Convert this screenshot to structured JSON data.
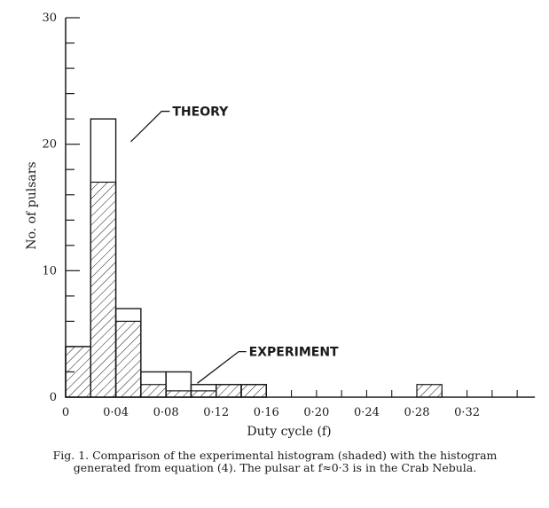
{
  "chart_data": {
    "type": "bar",
    "bins": [
      {
        "from": 0.0,
        "to": 0.02,
        "theory": 4,
        "experiment": 4
      },
      {
        "from": 0.02,
        "to": 0.04,
        "theory": 22,
        "experiment": 17
      },
      {
        "from": 0.04,
        "to": 0.06,
        "theory": 7,
        "experiment": 6
      },
      {
        "from": 0.06,
        "to": 0.08,
        "theory": 2,
        "experiment": 1
      },
      {
        "from": 0.08,
        "to": 0.1,
        "theory": 2,
        "experiment": 0.5
      },
      {
        "from": 0.1,
        "to": 0.12,
        "theory": 1,
        "experiment": 0.5
      },
      {
        "from": 0.12,
        "to": 0.14,
        "theory": 1,
        "experiment": 1
      },
      {
        "from": 0.14,
        "to": 0.16,
        "theory": 1,
        "experiment": 1
      },
      {
        "from": 0.16,
        "to": 0.18,
        "theory": 0,
        "experiment": 0
      },
      {
        "from": 0.18,
        "to": 0.2,
        "theory": 0,
        "experiment": 0
      },
      {
        "from": 0.2,
        "to": 0.22,
        "theory": 0,
        "experiment": 0
      },
      {
        "from": 0.22,
        "to": 0.24,
        "theory": 0,
        "experiment": 0
      },
      {
        "from": 0.24,
        "to": 0.26,
        "theory": 0,
        "experiment": 0
      },
      {
        "from": 0.26,
        "to": 0.28,
        "theory": 0,
        "experiment": 0
      },
      {
        "from": 0.28,
        "to": 0.3,
        "theory": 0,
        "experiment": 1
      },
      {
        "from": 0.3,
        "to": 0.32,
        "theory": 0,
        "experiment": 0
      }
    ],
    "xlabel": "Duty cycle (f)",
    "ylabel": "No. of pulsars",
    "xlim": [
      0,
      0.36
    ],
    "ylim": [
      0,
      30
    ],
    "xticks": [
      {
        "value": 0,
        "label": "0"
      },
      {
        "value": 0.04,
        "label": "0·04"
      },
      {
        "value": 0.08,
        "label": "0·08"
      },
      {
        "value": 0.12,
        "label": "0·12"
      },
      {
        "value": 0.16,
        "label": "0·16"
      },
      {
        "value": 0.2,
        "label": "0·20"
      },
      {
        "value": 0.24,
        "label": "0·24"
      },
      {
        "value": 0.28,
        "label": "0·28"
      },
      {
        "value": 0.32,
        "label": "0·32"
      }
    ],
    "yticks": [
      {
        "value": 0,
        "label": "0"
      },
      {
        "value": 10,
        "label": "10"
      },
      {
        "value": 20,
        "label": "20"
      },
      {
        "value": 30,
        "label": "30"
      }
    ],
    "annotations": [
      {
        "text": "THEORY",
        "target_x": 0.035,
        "target_y": 21
      },
      {
        "text": "EXPERIMENT",
        "target_x": 0.11,
        "target_y": 1
      }
    ],
    "caption": "Fig. 1. Comparison of the experimental histogram (shaded) with the histogram generated from equation (4). The pulsar at f≈0·3 is in the Crab Nebula."
  }
}
